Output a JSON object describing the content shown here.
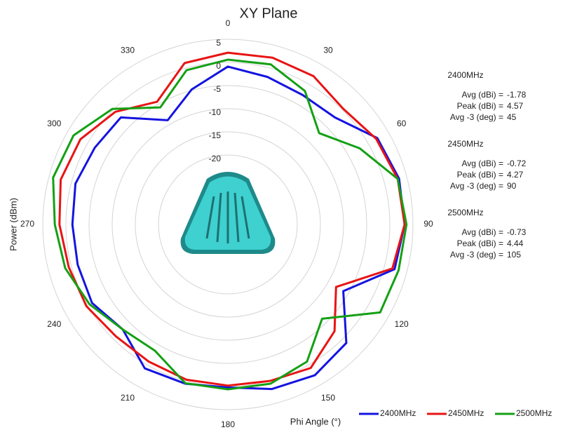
{
  "chart_data": {
    "type": "polar",
    "title": "XY Plane",
    "ylabel": "Power (dBm)",
    "xlabel": "Phi  Angle (°)",
    "x": [
      0,
      15,
      30,
      45,
      60,
      75,
      90,
      105,
      120,
      135,
      150,
      165,
      180,
      195,
      210,
      225,
      240,
      255,
      270,
      285,
      300,
      315,
      330,
      345
    ],
    "xticks": [
      0,
      30,
      60,
      90,
      120,
      150,
      180,
      210,
      240,
      270,
      300,
      330
    ],
    "ylim": [
      -35,
      5
    ],
    "yticks": [
      -20,
      -15,
      -10,
      -5,
      0,
      5
    ],
    "series": [
      {
        "name": "2400MHz",
        "color": "#1414e0",
        "values": [
          -0.9,
          -2,
          -2.7,
          -2.3,
          2.3,
          3.3,
          3.2,
          2.3,
          -6.2,
          1.2,
          2.6,
          1.8,
          0.2,
          0.6,
          0.9,
          -2.9,
          -1.1,
          -1.4,
          -1.4,
          -0.9,
          -1.8,
          -2.3,
          -9,
          -4.8
        ]
      },
      {
        "name": "2450MHz",
        "color": "#e81414",
        "values": [
          2.1,
          2.3,
          2,
          0.3,
          2,
          3,
          3.2,
          1.8,
          -8,
          -2.4,
          0.8,
          0,
          -0.2,
          -0.3,
          -0.8,
          -0.8,
          0.3,
          0.6,
          1.4,
          2.4,
          1.8,
          -0.6,
          -4.4,
          1.1
        ]
      },
      {
        "name": "2500MHz",
        "color": "#14a014",
        "values": [
          0.6,
          0.8,
          -1.7,
          -7.1,
          -2.1,
          3,
          3.6,
          3.2,
          3,
          -6.2,
          -0.8,
          0.6,
          0.6,
          0.5,
          -3.5,
          -2.9,
          -0.5,
          1.4,
          2.4,
          4.1,
          3.5,
          0.3,
          -5.8,
          -0.5
        ]
      }
    ],
    "annotations": [
      {
        "title": "2400MHz",
        "rows": [
          [
            "Avg (dBi) =",
            "-1.78"
          ],
          [
            "Peak (dBi) =",
            "4.57"
          ],
          [
            "Avg -3 (deg) =",
            "45"
          ]
        ]
      },
      {
        "title": "2450MHz",
        "rows": [
          [
            "Avg (dBi) =",
            "-0.72"
          ],
          [
            "Peak (dBi) =",
            "4.27"
          ],
          [
            "Avg -3 (deg) =",
            "90"
          ]
        ]
      },
      {
        "title": "2500MHz",
        "rows": [
          [
            "Avg (dBi) =",
            "-0.73"
          ],
          [
            "Peak (dBi) =",
            "4.44"
          ],
          [
            "Avg -3 (deg) =",
            "105"
          ]
        ]
      }
    ]
  }
}
